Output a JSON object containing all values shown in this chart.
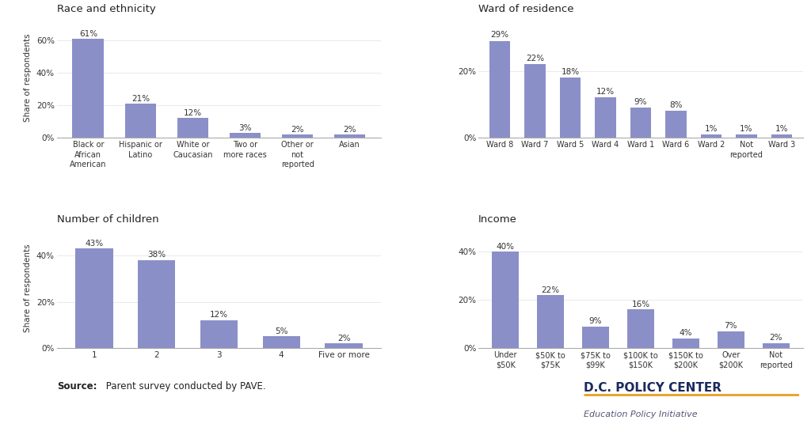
{
  "race_categories": [
    "Black or\nAfrican\nAmerican",
    "Hispanic or\nLatino",
    "White or\nCaucasian",
    "Two or\nmore races",
    "Other or\nnot\nreported",
    "Asian"
  ],
  "race_values": [
    61,
    21,
    12,
    3,
    2,
    2
  ],
  "ward_categories": [
    "Ward 8",
    "Ward 7",
    "Ward 5",
    "Ward 4",
    "Ward 1",
    "Ward 6",
    "Ward 2",
    "Not\nreported",
    "Ward 3"
  ],
  "ward_values": [
    29,
    22,
    18,
    12,
    9,
    8,
    1,
    1,
    1
  ],
  "children_categories": [
    "1",
    "2",
    "3",
    "4",
    "Five or more"
  ],
  "children_values": [
    43,
    38,
    12,
    5,
    2
  ],
  "income_categories": [
    "Under\n$50K",
    "$50K to\n$75K",
    "$75K to\n$99K",
    "$100K to\n$150K",
    "$150K to\n$200K",
    "Over\n$200K",
    "Not\nreported"
  ],
  "income_values": [
    40,
    22,
    9,
    16,
    4,
    7,
    2
  ],
  "bar_color": "#8b8fc8",
  "bg_color": "#ffffff",
  "title_race": "Race and ethnicity",
  "title_ward": "Ward of residence",
  "title_children": "Number of children",
  "title_income": "Income",
  "ylabel": "Share of respondents",
  "source_bold": "Source:",
  "source_rest": " Parent survey conducted by PAVE.",
  "logo_line1": "D.C. POLICY CENTER",
  "logo_line2": "Education Policy Initiative",
  "logo_color": "#1a2a5e",
  "logo_sub_color": "#555577",
  "logo_line_color": "#e8a020"
}
